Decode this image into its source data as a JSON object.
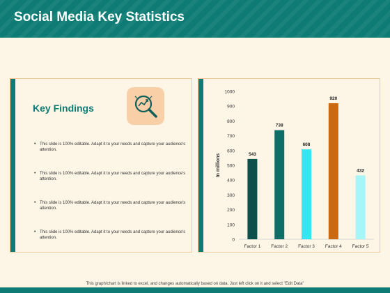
{
  "header": {
    "title": "Social Media Key Statistics"
  },
  "left_panel": {
    "heading": "Key Findings",
    "icon": "magnifier-chart-icon",
    "bullets": [
      "This slide is 100% editable. Adapt it to your needs and capture your audience's attention.",
      "This slide is 100% editable. Adapt it to your needs and capture your audience's attention.",
      "This slide is 100% editable. Adapt it to your needs and capture your audience's attention.",
      "This slide is 100% editable. Adapt it to your needs and capture your audience's attention."
    ]
  },
  "footer": {
    "text": "This graph/chart is linked to excel, and changes automatically based on data. Just left click on it and select \"Edit Data\""
  },
  "chart_data": {
    "type": "bar",
    "categories": [
      "Factor 1",
      "Factor 2",
      "Factor 3",
      "Factor 4",
      "Factor 5"
    ],
    "values": [
      543,
      738,
      608,
      920,
      432
    ],
    "colors": [
      "#0d4f4a",
      "#0e6e68",
      "#33e6f0",
      "#c96a13",
      "#a6f5f8"
    ],
    "ylabel": "In millions",
    "ylim": [
      0,
      1000
    ],
    "yticks": [
      0,
      100,
      200,
      300,
      400,
      500,
      600,
      700,
      800,
      900,
      1000
    ],
    "data_labels": [
      "543",
      "738",
      "608",
      "920",
      "432"
    ],
    "grid": false,
    "legend": "none"
  }
}
